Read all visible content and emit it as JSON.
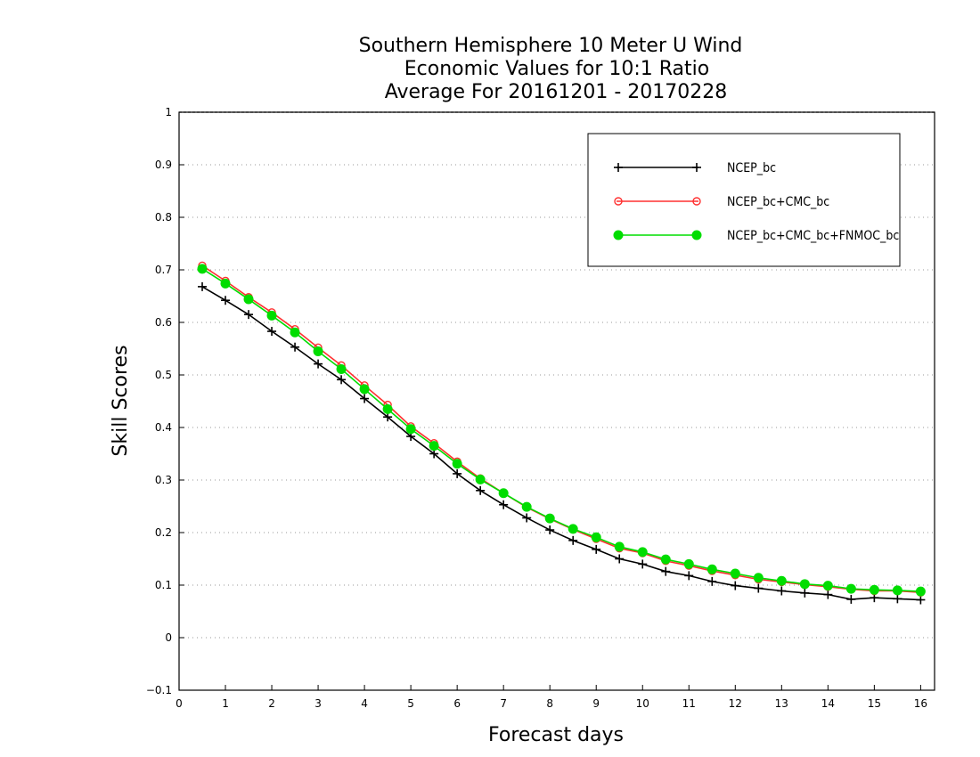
{
  "chart_data": {
    "type": "line",
    "title": [
      "Southern Hemisphere 10 Meter U Wind",
      "Economic Values for 10:1 Ratio",
      "Average For 20161201 - 20170228"
    ],
    "xlabel": "Forecast days",
    "ylabel": "Skill Scores",
    "xlim": [
      0,
      16.3
    ],
    "ylim": [
      -0.1,
      1
    ],
    "x_ticks": [
      0,
      1,
      2,
      3,
      4,
      5,
      6,
      7,
      8,
      9,
      10,
      11,
      12,
      13,
      14,
      15,
      16
    ],
    "y_ticks": [
      -0.1,
      0,
      0.1,
      0.2,
      0.3,
      0.4,
      0.5,
      0.6,
      0.7,
      0.8,
      0.9,
      1
    ],
    "y_tick_labels": [
      "−0.1",
      "0",
      "0.1",
      "0.2",
      "0.3",
      "0.4",
      "0.5",
      "0.6",
      "0.7",
      "0.8",
      "0.9",
      "1"
    ],
    "grid": "horizontal dotted",
    "legend_position": "top-right",
    "x": [
      0.5,
      1,
      1.5,
      2,
      2.5,
      3,
      3.5,
      4,
      4.5,
      5,
      5.5,
      6,
      6.5,
      7,
      7.5,
      8,
      8.5,
      9,
      9.5,
      10,
      10.5,
      11,
      11.5,
      12,
      12.5,
      13,
      13.5,
      14,
      14.5,
      15,
      15.5,
      16
    ],
    "series": [
      {
        "name": "NCEP_bc",
        "color": "#000000",
        "marker": "plus",
        "values": [
          0.668,
          0.642,
          0.615,
          0.583,
          0.553,
          0.521,
          0.491,
          0.455,
          0.42,
          0.383,
          0.35,
          0.312,
          0.28,
          0.253,
          0.228,
          0.205,
          0.185,
          0.168,
          0.15,
          0.14,
          0.126,
          0.118,
          0.107,
          0.099,
          0.094,
          0.089,
          0.085,
          0.082,
          0.073,
          0.076,
          0.074,
          0.072
        ]
      },
      {
        "name": "NCEP_bc+CMC_bc",
        "color": "#ff3030",
        "marker": "open-circle",
        "values": [
          0.708,
          0.679,
          0.648,
          0.619,
          0.587,
          0.552,
          0.518,
          0.48,
          0.443,
          0.402,
          0.37,
          0.335,
          0.303,
          0.275,
          0.248,
          0.226,
          0.206,
          0.188,
          0.17,
          0.161,
          0.146,
          0.137,
          0.127,
          0.119,
          0.111,
          0.106,
          0.101,
          0.097,
          0.092,
          0.089,
          0.089,
          0.086
        ]
      },
      {
        "name": "NCEP_bc+CMC_bc+FNMOC_bc",
        "color": "#00dd00",
        "marker": "filled-circle",
        "values": [
          0.702,
          0.674,
          0.644,
          0.613,
          0.581,
          0.545,
          0.511,
          0.473,
          0.435,
          0.397,
          0.365,
          0.331,
          0.301,
          0.275,
          0.249,
          0.227,
          0.207,
          0.191,
          0.173,
          0.163,
          0.149,
          0.14,
          0.13,
          0.122,
          0.114,
          0.108,
          0.102,
          0.099,
          0.093,
          0.091,
          0.09,
          0.088
        ]
      }
    ]
  }
}
